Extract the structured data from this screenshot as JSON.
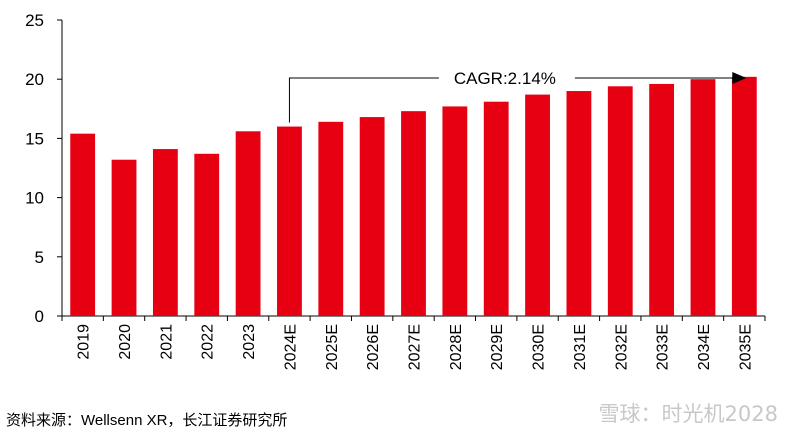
{
  "chart_data": {
    "type": "bar",
    "categories": [
      "2019",
      "2020",
      "2021",
      "2022",
      "2023",
      "2024E",
      "2025E",
      "2026E",
      "2027E",
      "2028E",
      "2029E",
      "2030E",
      "2031E",
      "2032E",
      "2033E",
      "2034E",
      "2035E"
    ],
    "values": [
      15.4,
      13.2,
      14.1,
      13.7,
      15.6,
      16.0,
      16.4,
      16.8,
      17.3,
      17.7,
      18.1,
      18.7,
      19.0,
      19.4,
      19.6,
      20.0,
      20.2
    ],
    "ylim": [
      0,
      25
    ],
    "yticks": [
      0,
      5,
      10,
      15,
      20,
      25
    ],
    "bar_color": "#e60012",
    "grid": false,
    "annotation": {
      "text": "CAGR:2.14%",
      "from_category": "2024E",
      "to_category": "2035E"
    }
  },
  "source_text": "资料来源：Wellsenn XR，长江证券研究所",
  "watermark_text": "雪球：时光机2028"
}
